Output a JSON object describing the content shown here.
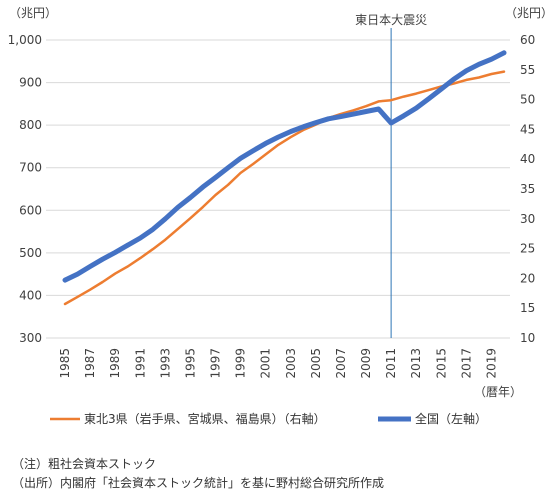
{
  "chart_data": {
    "type": "line",
    "left_unit": "（兆円）",
    "right_unit": "（兆円）",
    "xlabel": "（暦年）",
    "y_left": {
      "min": 300,
      "max": 1000,
      "step": 100,
      "ticks": [
        "300",
        "400",
        "500",
        "600",
        "700",
        "800",
        "900",
        "1,000"
      ]
    },
    "y_right": {
      "min": 10,
      "max": 60,
      "step": 5,
      "ticks": [
        "10",
        "15",
        "20",
        "25",
        "30",
        "35",
        "40",
        "45",
        "50",
        "55",
        "60"
      ]
    },
    "x_ticks": [
      "1985",
      "1987",
      "1989",
      "1991",
      "1993",
      "1995",
      "1997",
      "1999",
      "2001",
      "2003",
      "2005",
      "2007",
      "2009",
      "2011",
      "2013",
      "2015",
      "2017",
      "2019"
    ],
    "x": [
      1985,
      1986,
      1987,
      1988,
      1989,
      1990,
      1991,
      1992,
      1993,
      1994,
      1995,
      1996,
      1997,
      1998,
      1999,
      2000,
      2001,
      2002,
      2003,
      2004,
      2005,
      2006,
      2007,
      2008,
      2009,
      2010,
      2011,
      2012,
      2013,
      2014,
      2015,
      2016,
      2017,
      2018,
      2019,
      2020
    ],
    "annotation": {
      "label": "東日本大震災",
      "x": 2011
    },
    "series": [
      {
        "name": "東北3県（岩手県、宮城県、福島県）（右軸）",
        "axis": "right",
        "color": "#ED7D31",
        "width": 2.5,
        "values": [
          15.7,
          16.9,
          18.1,
          19.4,
          20.8,
          22.0,
          23.4,
          24.9,
          26.5,
          28.3,
          30.1,
          32.0,
          34.0,
          35.7,
          37.7,
          39.2,
          40.8,
          42.4,
          43.7,
          44.9,
          45.8,
          46.9,
          47.6,
          48.2,
          48.9,
          49.7,
          49.9,
          50.5,
          51.0,
          51.6,
          52.2,
          52.7,
          53.3,
          53.7,
          54.3,
          54.7
        ]
      },
      {
        "name": "全国（左軸）",
        "axis": "left",
        "color": "#4472C4",
        "width": 5,
        "values": [
          436,
          450,
          468,
          485,
          501,
          518,
          535,
          555,
          580,
          607,
          630,
          655,
          677,
          700,
          722,
          740,
          757,
          772,
          785,
          796,
          806,
          815,
          820,
          826,
          832,
          838,
          805,
          822,
          840,
          862,
          885,
          908,
          928,
          943,
          955,
          970
        ]
      }
    ]
  },
  "notes": {
    "note1": "（注）粗社会資本ストック",
    "note2": "（出所）内閣府「社会資本ストック統計」を基に野村総合研究所作成"
  }
}
